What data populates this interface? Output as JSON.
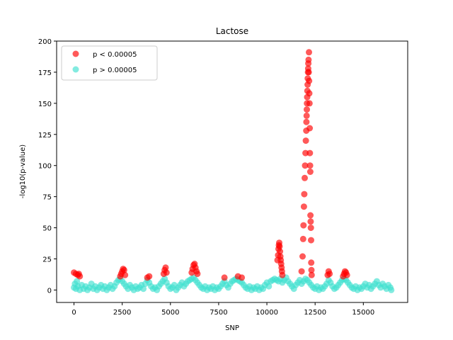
{
  "chart_data": {
    "type": "scatter",
    "title": "Lactose",
    "xlabel": "SNP",
    "ylabel": "-log10(p-value)",
    "xlim": [
      -900,
      17300
    ],
    "ylim": [
      -10,
      200
    ],
    "xticks": [
      0,
      2500,
      5000,
      7500,
      10000,
      12500,
      15000
    ],
    "yticks": [
      0,
      25,
      50,
      75,
      100,
      125,
      150,
      175,
      200
    ],
    "legend_position": "upper-left",
    "series": [
      {
        "name": "p < 0.00005",
        "color": "#ff0000",
        "opacity": 0.65,
        "points": [
          [
            0,
            14
          ],
          [
            100,
            13
          ],
          [
            200,
            12
          ],
          [
            250,
            13
          ],
          [
            300,
            11
          ],
          [
            2400,
            11
          ],
          [
            2450,
            13
          ],
          [
            2500,
            15
          ],
          [
            2550,
            17
          ],
          [
            2600,
            16
          ],
          [
            2650,
            12
          ],
          [
            3800,
            10
          ],
          [
            3900,
            11
          ],
          [
            4650,
            13
          ],
          [
            4700,
            16
          ],
          [
            4750,
            18
          ],
          [
            4800,
            14
          ],
          [
            6100,
            14
          ],
          [
            6150,
            17
          ],
          [
            6200,
            20
          ],
          [
            6250,
            21
          ],
          [
            6300,
            18
          ],
          [
            6350,
            15
          ],
          [
            6400,
            13
          ],
          [
            7800,
            10
          ],
          [
            8500,
            11
          ],
          [
            8700,
            10
          ],
          [
            10550,
            24
          ],
          [
            10580,
            28
          ],
          [
            10600,
            33
          ],
          [
            10620,
            36
          ],
          [
            10640,
            38
          ],
          [
            10660,
            35
          ],
          [
            10680,
            31
          ],
          [
            10700,
            27
          ],
          [
            10720,
            24
          ],
          [
            10740,
            21
          ],
          [
            10760,
            18
          ],
          [
            10780,
            15
          ],
          [
            10800,
            12
          ],
          [
            11800,
            15
          ],
          [
            11850,
            27
          ],
          [
            11880,
            41
          ],
          [
            11900,
            52
          ],
          [
            11920,
            67
          ],
          [
            11940,
            77
          ],
          [
            11960,
            90
          ],
          [
            11980,
            100
          ],
          [
            12000,
            110
          ],
          [
            12020,
            120
          ],
          [
            12040,
            128
          ],
          [
            12060,
            140
          ],
          [
            12080,
            150
          ],
          [
            12100,
            160
          ],
          [
            12120,
            170
          ],
          [
            12140,
            178
          ],
          [
            12160,
            185
          ],
          [
            12180,
            191
          ],
          [
            12050,
            135
          ],
          [
            12070,
            145
          ],
          [
            12090,
            155
          ],
          [
            12110,
            165
          ],
          [
            12130,
            175
          ],
          [
            12150,
            182
          ],
          [
            12170,
            175
          ],
          [
            12190,
            168
          ],
          [
            12200,
            158
          ],
          [
            12210,
            150
          ],
          [
            12220,
            130
          ],
          [
            12230,
            110
          ],
          [
            12240,
            100
          ],
          [
            12250,
            95
          ],
          [
            12260,
            60
          ],
          [
            12270,
            55
          ],
          [
            12280,
            50
          ],
          [
            12290,
            40
          ],
          [
            12300,
            22
          ],
          [
            12310,
            16
          ],
          [
            12320,
            12
          ],
          [
            13150,
            12
          ],
          [
            13200,
            15
          ],
          [
            13250,
            13
          ],
          [
            13950,
            11
          ],
          [
            14000,
            13
          ],
          [
            14050,
            15
          ],
          [
            14100,
            14
          ],
          [
            14150,
            12
          ]
        ]
      },
      {
        "name": "p > 0.00005",
        "color": "#40e0d0",
        "opacity": 0.65,
        "points": [
          [
            0,
            2
          ],
          [
            50,
            5
          ],
          [
            100,
            1
          ],
          [
            150,
            7
          ],
          [
            200,
            3
          ],
          [
            300,
            0
          ],
          [
            400,
            4
          ],
          [
            500,
            1
          ],
          [
            600,
            3
          ],
          [
            700,
            0
          ],
          [
            800,
            2
          ],
          [
            900,
            5
          ],
          [
            1000,
            1
          ],
          [
            1100,
            3
          ],
          [
            1200,
            0
          ],
          [
            1300,
            2
          ],
          [
            1400,
            4
          ],
          [
            1500,
            1
          ],
          [
            1600,
            3
          ],
          [
            1700,
            0
          ],
          [
            1800,
            2
          ],
          [
            1900,
            4
          ],
          [
            2000,
            1
          ],
          [
            2100,
            3
          ],
          [
            2200,
            6
          ],
          [
            2300,
            8
          ],
          [
            2400,
            9
          ],
          [
            2500,
            7
          ],
          [
            2600,
            5
          ],
          [
            2700,
            3
          ],
          [
            2800,
            1
          ],
          [
            2900,
            4
          ],
          [
            3000,
            2
          ],
          [
            3100,
            0
          ],
          [
            3200,
            3
          ],
          [
            3300,
            1
          ],
          [
            3400,
            2
          ],
          [
            3500,
            4
          ],
          [
            3600,
            1
          ],
          [
            3700,
            5
          ],
          [
            3800,
            8
          ],
          [
            3900,
            6
          ],
          [
            4000,
            3
          ],
          [
            4100,
            1
          ],
          [
            4200,
            2
          ],
          [
            4300,
            0
          ],
          [
            4400,
            3
          ],
          [
            4500,
            5
          ],
          [
            4600,
            7
          ],
          [
            4700,
            9
          ],
          [
            4800,
            6
          ],
          [
            4900,
            3
          ],
          [
            5000,
            1
          ],
          [
            5100,
            2
          ],
          [
            5200,
            4
          ],
          [
            5300,
            0
          ],
          [
            5400,
            2
          ],
          [
            5500,
            4
          ],
          [
            5600,
            6
          ],
          [
            5700,
            3
          ],
          [
            5800,
            5
          ],
          [
            5900,
            7
          ],
          [
            6000,
            8
          ],
          [
            6100,
            9
          ],
          [
            6200,
            10
          ],
          [
            6300,
            8
          ],
          [
            6400,
            6
          ],
          [
            6500,
            4
          ],
          [
            6600,
            2
          ],
          [
            6700,
            1
          ],
          [
            6800,
            3
          ],
          [
            6900,
            0
          ],
          [
            7000,
            2
          ],
          [
            7100,
            1
          ],
          [
            7200,
            3
          ],
          [
            7300,
            0
          ],
          [
            7400,
            2
          ],
          [
            7500,
            1
          ],
          [
            7600,
            3
          ],
          [
            7700,
            5
          ],
          [
            7800,
            7
          ],
          [
            7900,
            4
          ],
          [
            8000,
            2
          ],
          [
            8100,
            5
          ],
          [
            8200,
            7
          ],
          [
            8300,
            8
          ],
          [
            8400,
            9
          ],
          [
            8500,
            8
          ],
          [
            8600,
            7
          ],
          [
            8700,
            6
          ],
          [
            8800,
            4
          ],
          [
            8900,
            2
          ],
          [
            9000,
            1
          ],
          [
            9100,
            3
          ],
          [
            9200,
            0
          ],
          [
            9300,
            2
          ],
          [
            9400,
            1
          ],
          [
            9500,
            3
          ],
          [
            9600,
            0
          ],
          [
            9700,
            2
          ],
          [
            9800,
            1
          ],
          [
            9900,
            4
          ],
          [
            10000,
            6
          ],
          [
            10100,
            3
          ],
          [
            10200,
            7
          ],
          [
            10300,
            8
          ],
          [
            10400,
            9
          ],
          [
            10500,
            8
          ],
          [
            10600,
            7
          ],
          [
            10700,
            9
          ],
          [
            10800,
            6
          ],
          [
            10900,
            8
          ],
          [
            11000,
            10
          ],
          [
            11100,
            7
          ],
          [
            11200,
            5
          ],
          [
            11300,
            3
          ],
          [
            11400,
            1
          ],
          [
            11500,
            4
          ],
          [
            11600,
            6
          ],
          [
            11700,
            8
          ],
          [
            11800,
            5
          ],
          [
            11900,
            7
          ],
          [
            12000,
            9
          ],
          [
            12100,
            8
          ],
          [
            12200,
            6
          ],
          [
            12300,
            4
          ],
          [
            12400,
            2
          ],
          [
            12500,
            1
          ],
          [
            12600,
            3
          ],
          [
            12700,
            0
          ],
          [
            12800,
            2
          ],
          [
            12900,
            1
          ],
          [
            13000,
            3
          ],
          [
            13100,
            5
          ],
          [
            13200,
            8
          ],
          [
            13300,
            6
          ],
          [
            13400,
            3
          ],
          [
            13500,
            1
          ],
          [
            13600,
            2
          ],
          [
            13700,
            4
          ],
          [
            13800,
            6
          ],
          [
            13900,
            8
          ],
          [
            14000,
            9
          ],
          [
            14100,
            8
          ],
          [
            14200,
            6
          ],
          [
            14300,
            4
          ],
          [
            14400,
            2
          ],
          [
            14500,
            1
          ],
          [
            14600,
            3
          ],
          [
            14700,
            0
          ],
          [
            14800,
            2
          ],
          [
            14900,
            1
          ],
          [
            15000,
            3
          ],
          [
            15100,
            5
          ],
          [
            15200,
            2
          ],
          [
            15300,
            4
          ],
          [
            15400,
            1
          ],
          [
            15500,
            3
          ],
          [
            15600,
            5
          ],
          [
            15700,
            7
          ],
          [
            15800,
            4
          ],
          [
            15900,
            2
          ],
          [
            16000,
            5
          ],
          [
            16100,
            3
          ],
          [
            16200,
            1
          ],
          [
            16300,
            4
          ],
          [
            16400,
            2
          ],
          [
            16450,
            0
          ]
        ]
      }
    ]
  }
}
